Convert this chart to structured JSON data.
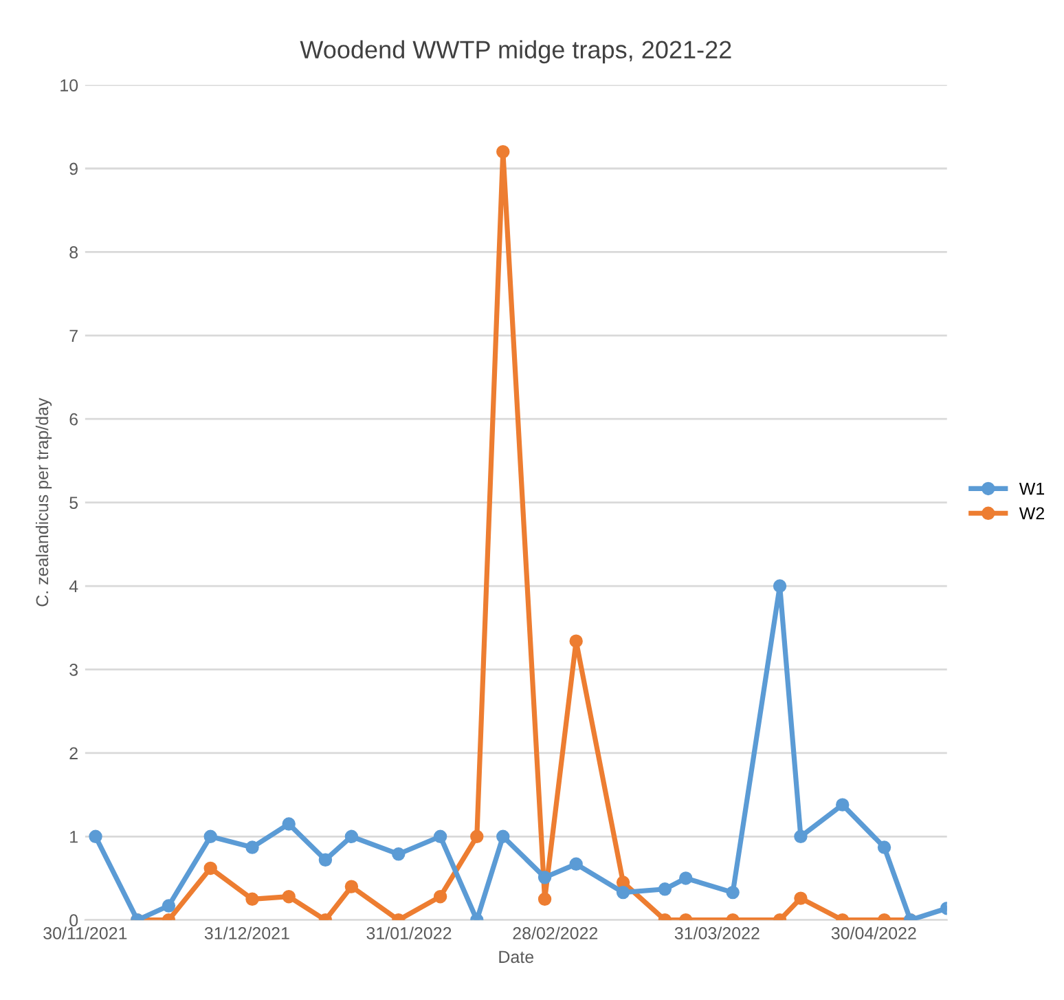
{
  "chart_data": {
    "type": "line",
    "title": "Woodend WWTP midge traps, 2021-22",
    "xlabel": "Date",
    "ylabel": "C. zealandicus per trap/day",
    "xlim": [
      "2021-11-30",
      "2022-05-14"
    ],
    "xticks": [
      {
        "value": "2021-11-30",
        "label": "30/11/2021"
      },
      {
        "value": "2021-12-31",
        "label": "31/12/2021"
      },
      {
        "value": "2022-01-31",
        "label": "31/01/2022"
      },
      {
        "value": "2022-02-28",
        "label": "28/02/2022"
      },
      {
        "value": "2022-03-31",
        "label": "31/03/2022"
      },
      {
        "value": "2022-04-30",
        "label": "30/04/2022"
      }
    ],
    "ylim": [
      0,
      10
    ],
    "yticks": [
      0,
      1,
      2,
      3,
      4,
      5,
      6,
      7,
      8,
      9,
      10
    ],
    "grid": "y",
    "legend": "right",
    "marker": "circle",
    "line_style": "solid",
    "series": [
      {
        "name": "W1",
        "color": "#5b9bd5",
        "x": [
          "2021-12-02",
          "2021-12-10",
          "2021-12-16",
          "2021-12-24",
          "2022-01-01",
          "2022-01-08",
          "2022-01-15",
          "2022-01-20",
          "2022-01-29",
          "2022-02-06",
          "2022-02-13",
          "2022-02-18",
          "2022-02-26",
          "2022-03-04",
          "2022-03-13",
          "2022-03-21",
          "2022-03-25",
          "2022-04-03",
          "2022-04-12",
          "2022-04-16",
          "2022-04-24",
          "2022-05-02",
          "2022-05-07",
          "2022-05-14"
        ],
        "values": [
          1.0,
          0,
          0.17,
          1.0,
          0.87,
          1.15,
          0.72,
          1.0,
          0.79,
          1.0,
          0,
          1.0,
          0.51,
          0.67,
          0.33,
          0.37,
          0.5,
          0.33,
          4.0,
          1.0,
          1.38,
          0.87,
          0,
          0.14
        ]
      },
      {
        "name": "W2",
        "color": "#ed7d31",
        "x": [
          "2021-12-10",
          "2021-12-16",
          "2021-12-24",
          "2022-01-01",
          "2022-01-08",
          "2022-01-15",
          "2022-01-20",
          "2022-01-29",
          "2022-02-06",
          "2022-02-13",
          "2022-02-18",
          "2022-02-26",
          "2022-03-04",
          "2022-03-13",
          "2022-03-21",
          "2022-03-25",
          "2022-04-03",
          "2022-04-12",
          "2022-04-16",
          "2022-04-24",
          "2022-05-02",
          "2022-05-07"
        ],
        "values": [
          0,
          0,
          0.62,
          0.25,
          0.28,
          0,
          0.4,
          0,
          0.28,
          1.0,
          9.2,
          0.25,
          3.34,
          0.45,
          0,
          0,
          0,
          0,
          0.26,
          0,
          0,
          0
        ]
      }
    ]
  }
}
